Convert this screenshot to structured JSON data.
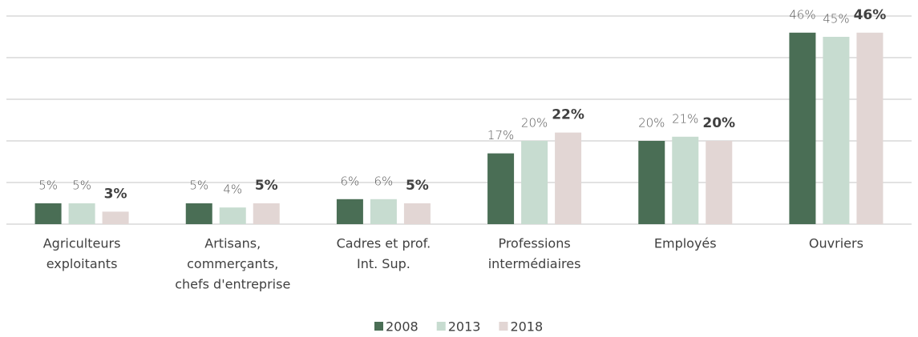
{
  "chart_data": {
    "type": "bar",
    "categories": [
      [
        "Agriculteurs",
        "exploitants"
      ],
      [
        "Artisans,",
        "commerçants,",
        "chefs d'entreprise"
      ],
      [
        "Cadres et prof.",
        "Int. Sup."
      ],
      [
        "Professions",
        "intermédiaires"
      ],
      [
        "Employés"
      ],
      [
        "Ouvriers"
      ]
    ],
    "series": [
      {
        "name": "2008",
        "color": "#4a6e55",
        "values": [
          5,
          5,
          6,
          17,
          20,
          46
        ],
        "value_labels": [
          "5%",
          "5%",
          "6%",
          "17%",
          "20%",
          "46%"
        ]
      },
      {
        "name": "2013",
        "color": "#c7dcd0",
        "values": [
          5,
          4,
          6,
          20,
          21,
          45
        ],
        "value_labels": [
          "5%",
          "4%",
          "6%",
          "20%",
          "21%",
          "45%"
        ]
      },
      {
        "name": "2018",
        "color": "#e2d6d4",
        "values": [
          3,
          5,
          5,
          22,
          20,
          46
        ],
        "value_labels": [
          "3%",
          "5%",
          "5%",
          "22%",
          "20%",
          "46%"
        ]
      }
    ],
    "ylim": [
      0,
      50
    ],
    "yticks": [
      0,
      10,
      20,
      30,
      40,
      50
    ],
    "grid": true
  }
}
